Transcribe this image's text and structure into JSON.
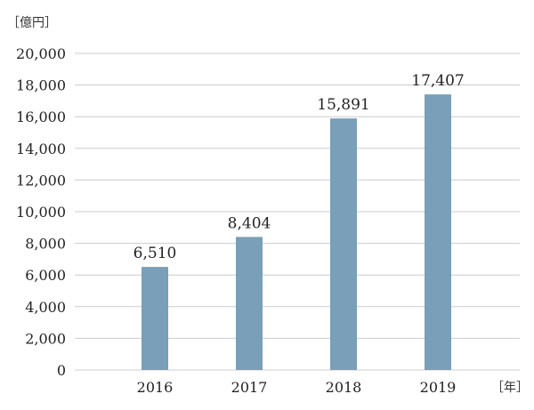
{
  "chart_data": {
    "type": "bar",
    "categories": [
      "2016",
      "2017",
      "2018",
      "2019"
    ],
    "values": [
      6510,
      8404,
      15891,
      17407
    ],
    "value_labels": [
      "6,510",
      "8,404",
      "15,891",
      "17,407"
    ],
    "y_ticks": [
      "0",
      "2,000",
      "4,000",
      "6,000",
      "8,000",
      "10,000",
      "12,000",
      "14,000",
      "16,000",
      "18,000",
      "20,000"
    ],
    "ylim": [
      0,
      20000
    ],
    "y_unit": "［億円］",
    "x_unit": "［年］",
    "grid": true,
    "bar_color": "#7a9fb8",
    "grid_color": "#cccccc"
  }
}
